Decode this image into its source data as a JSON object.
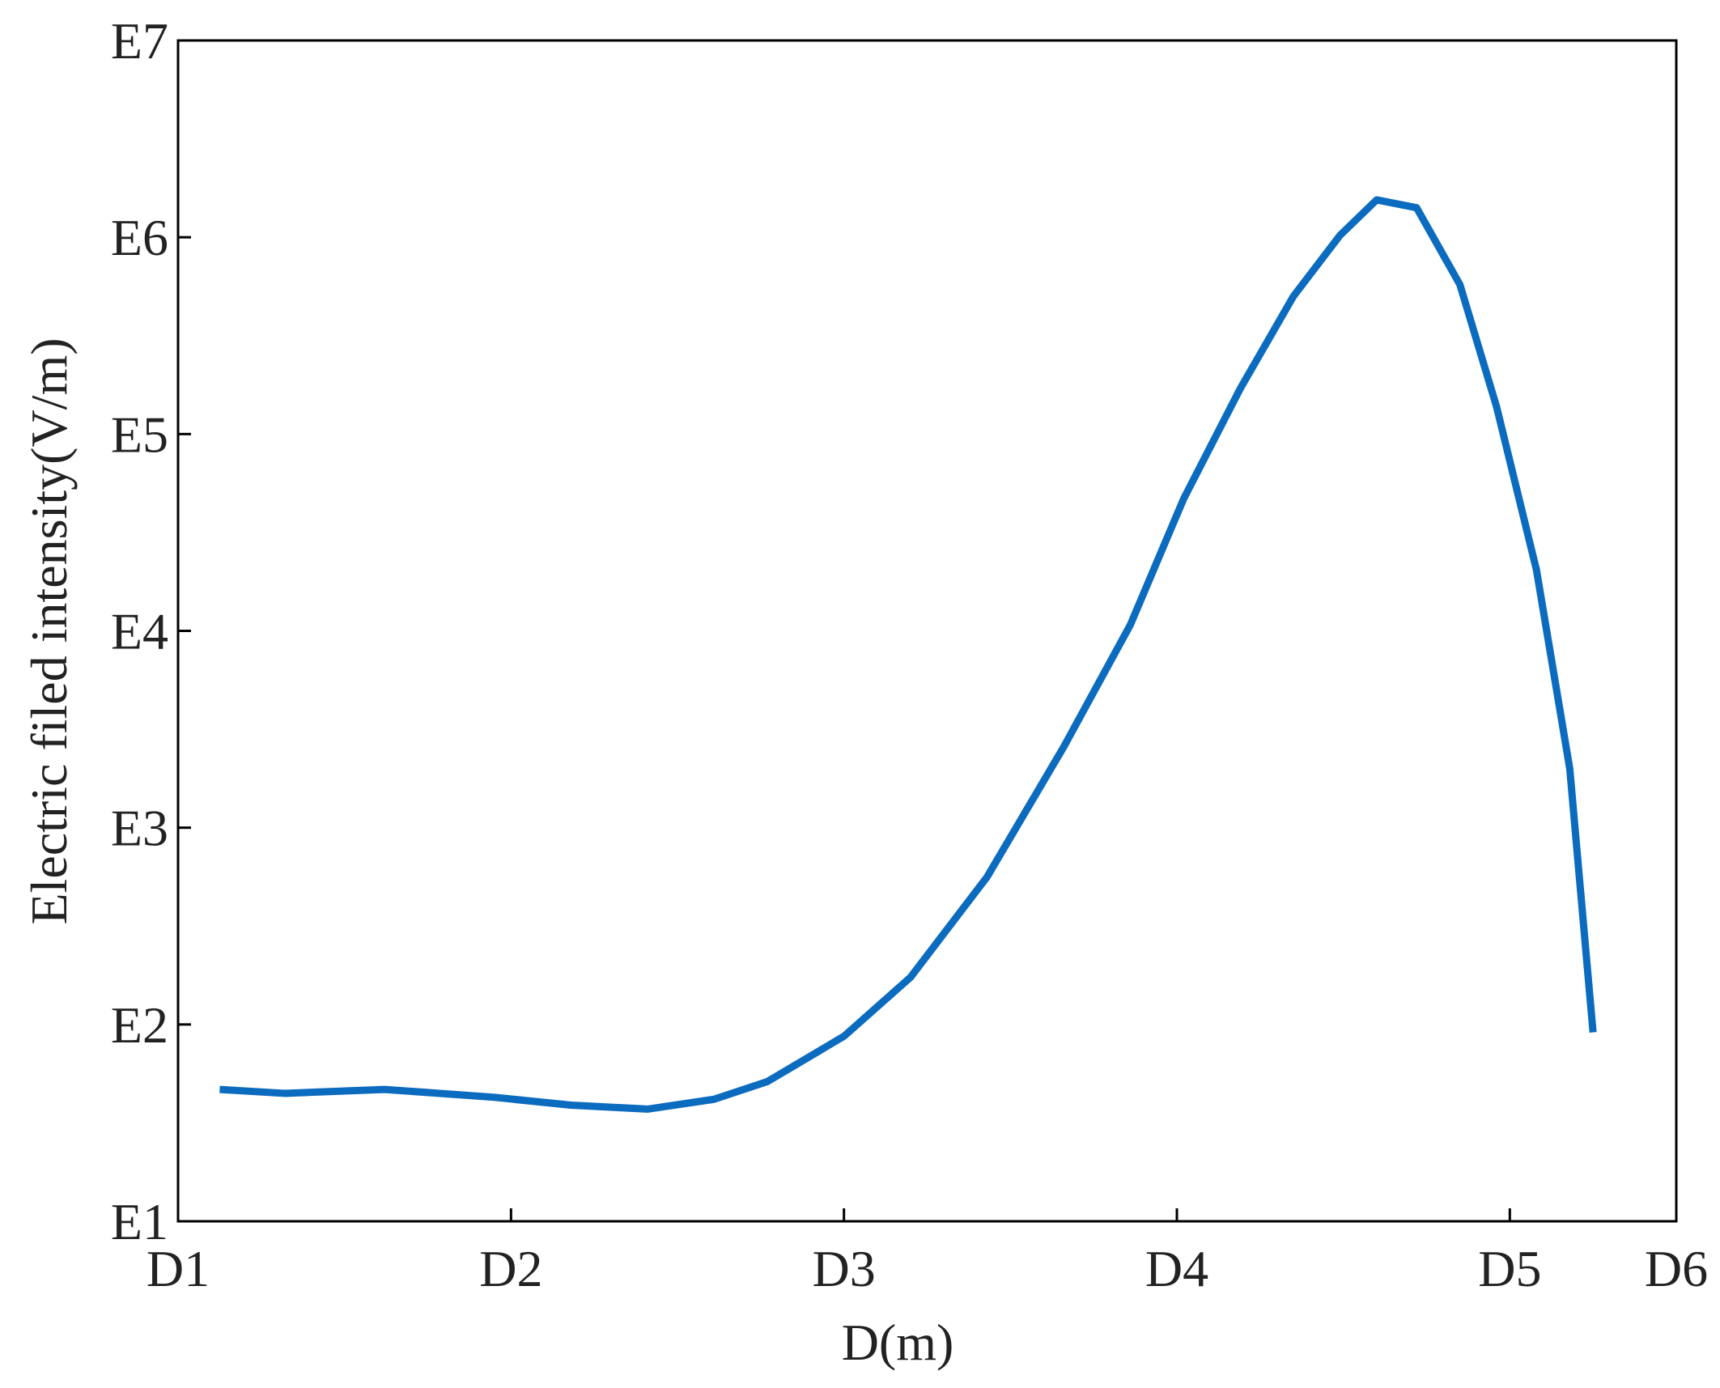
{
  "chart_data": {
    "type": "line",
    "x_label": "D(m)",
    "y_label": "Electric filed intensity(V/m)",
    "xlim": [
      1,
      5.5
    ],
    "ylim": [
      1,
      7
    ],
    "xticks": [
      {
        "value": 1,
        "label": "D1"
      },
      {
        "value": 2,
        "label": "D2"
      },
      {
        "value": 3,
        "label": "D3"
      },
      {
        "value": 4,
        "label": "D4"
      },
      {
        "value": 5,
        "label": "D5"
      },
      {
        "value": 5.5,
        "label": "D6"
      }
    ],
    "yticks": [
      {
        "value": 1,
        "label": "E1"
      },
      {
        "value": 2,
        "label": "E2"
      },
      {
        "value": 3,
        "label": "E3"
      },
      {
        "value": 4,
        "label": "E4"
      },
      {
        "value": 5,
        "label": "E5"
      },
      {
        "value": 6,
        "label": "E6"
      },
      {
        "value": 7,
        "label": "E7"
      }
    ],
    "x": [
      1.125,
      1.32,
      1.62,
      1.95,
      2.18,
      2.41,
      2.61,
      2.77,
      3.0,
      3.2,
      3.43,
      3.66,
      3.86,
      4.02,
      4.19,
      4.35,
      4.49,
      4.6,
      4.72,
      4.85,
      4.96,
      5.08,
      5.18,
      5.25
    ],
    "series": [
      {
        "color": "#0b6bbf",
        "values": [
          1.67,
          1.65,
          1.67,
          1.63,
          1.59,
          1.57,
          1.62,
          1.71,
          1.94,
          2.24,
          2.75,
          3.41,
          4.03,
          4.67,
          5.23,
          5.7,
          6.01,
          6.19,
          6.15,
          5.76,
          5.14,
          4.31,
          3.3,
          1.96
        ]
      }
    ]
  }
}
